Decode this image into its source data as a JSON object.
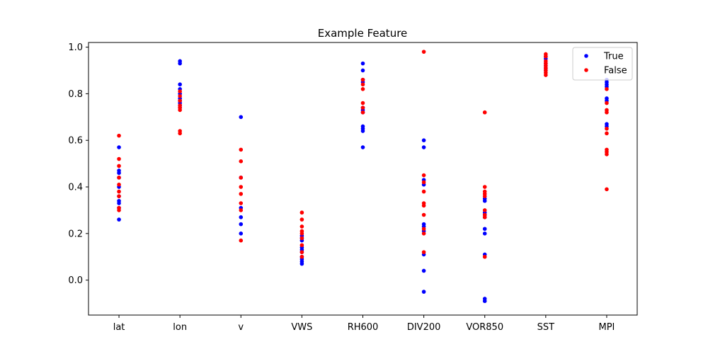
{
  "chart_data": {
    "type": "scatter",
    "title": "Example Feature",
    "xlabel": "",
    "ylabel": "",
    "categories": [
      "lat",
      "lon",
      "v",
      "VWS",
      "RH600",
      "DIV200",
      "VOR850",
      "SST",
      "MPI"
    ],
    "ylim": [
      -0.15,
      1.02
    ],
    "yticks": [
      0.0,
      0.2,
      0.4,
      0.6,
      0.8,
      1.0
    ],
    "ytick_labels": [
      "0.0",
      "0.2",
      "0.4",
      "0.6",
      "0.8",
      "1.0"
    ],
    "grid": false,
    "legend": "top-right",
    "series": [
      {
        "name": "True",
        "color": "#0000ff",
        "values": [
          [
            0.57,
            0.47,
            0.46,
            0.44,
            0.4,
            0.36,
            0.34,
            0.33,
            0.31,
            0.26
          ],
          [
            0.94,
            0.93,
            0.84,
            0.82,
            0.8,
            0.78,
            0.77,
            0.76,
            0.75,
            0.74
          ],
          [
            0.7,
            0.44,
            0.31,
            0.27,
            0.24,
            0.2
          ],
          [
            0.19,
            0.18,
            0.17,
            0.14,
            0.13,
            0.12,
            0.1,
            0.09,
            0.08,
            0.07
          ],
          [
            0.93,
            0.9,
            0.86,
            0.85,
            0.74,
            0.73,
            0.72,
            0.66,
            0.65,
            0.64,
            0.57
          ],
          [
            0.6,
            0.57,
            0.43,
            0.41,
            0.24,
            0.23,
            0.21,
            0.11,
            0.04,
            -0.05
          ],
          [
            0.35,
            0.34,
            0.29,
            0.28,
            0.27,
            0.22,
            0.2,
            0.11,
            -0.08,
            -0.09
          ],
          [
            0.96,
            0.95,
            0.93,
            0.92,
            0.91,
            0.9
          ],
          [
            0.86,
            0.85,
            0.84,
            0.83,
            0.78,
            0.77,
            0.67,
            0.66
          ]
        ]
      },
      {
        "name": "False",
        "color": "#ff0000",
        "values": [
          [
            0.62,
            0.52,
            0.49,
            0.44,
            0.41,
            0.38,
            0.36,
            0.31,
            0.3
          ],
          [
            0.81,
            0.79,
            0.77,
            0.75,
            0.74,
            0.73,
            0.64,
            0.63
          ],
          [
            0.56,
            0.51,
            0.44,
            0.4,
            0.37,
            0.33,
            0.3,
            0.17
          ],
          [
            0.29,
            0.26,
            0.23,
            0.21,
            0.2,
            0.18,
            0.15,
            0.12,
            0.1
          ],
          [
            0.86,
            0.84,
            0.82,
            0.76,
            0.74,
            0.72
          ],
          [
            0.98,
            0.45,
            0.42,
            0.38,
            0.33,
            0.32,
            0.28,
            0.22,
            0.2,
            0.12
          ],
          [
            0.72,
            0.4,
            0.38,
            0.37,
            0.36,
            0.3,
            0.28,
            0.27,
            0.1
          ],
          [
            0.97,
            0.96,
            0.94,
            0.93,
            0.92,
            0.91,
            0.9,
            0.89,
            0.88
          ],
          [
            0.82,
            0.76,
            0.73,
            0.72,
            0.65,
            0.63,
            0.56,
            0.55,
            0.54,
            0.39
          ]
        ]
      }
    ]
  }
}
